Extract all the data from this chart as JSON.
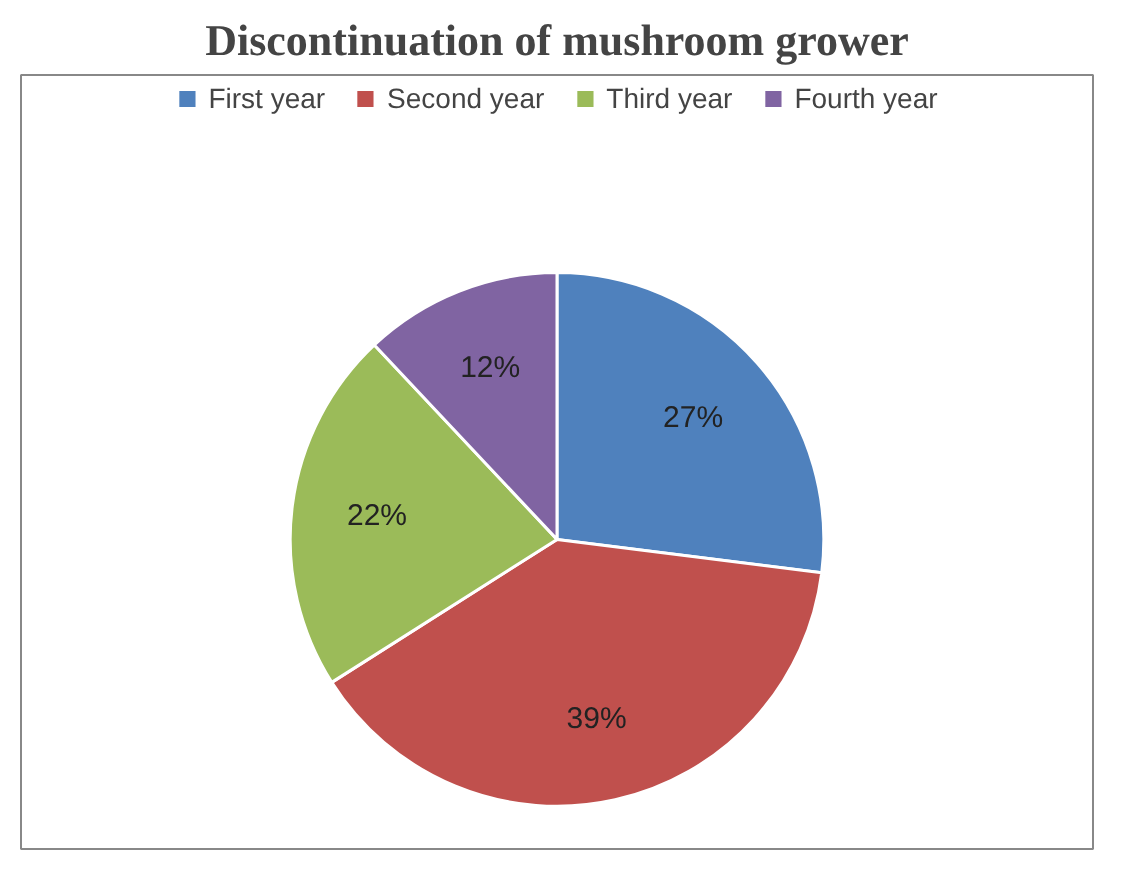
{
  "chart_data": {
    "type": "pie",
    "title": "Discontinuation of mushroom grower",
    "categories": [
      "First year",
      "Second year",
      "Third year",
      "Fourth year"
    ],
    "values": [
      27,
      39,
      22,
      12
    ],
    "colors": [
      "#4f81bd",
      "#c0504d",
      "#9bbb59",
      "#8064a2"
    ],
    "value_labels": [
      "27%",
      "39%",
      "22%",
      "12%"
    ],
    "legend": "top"
  }
}
